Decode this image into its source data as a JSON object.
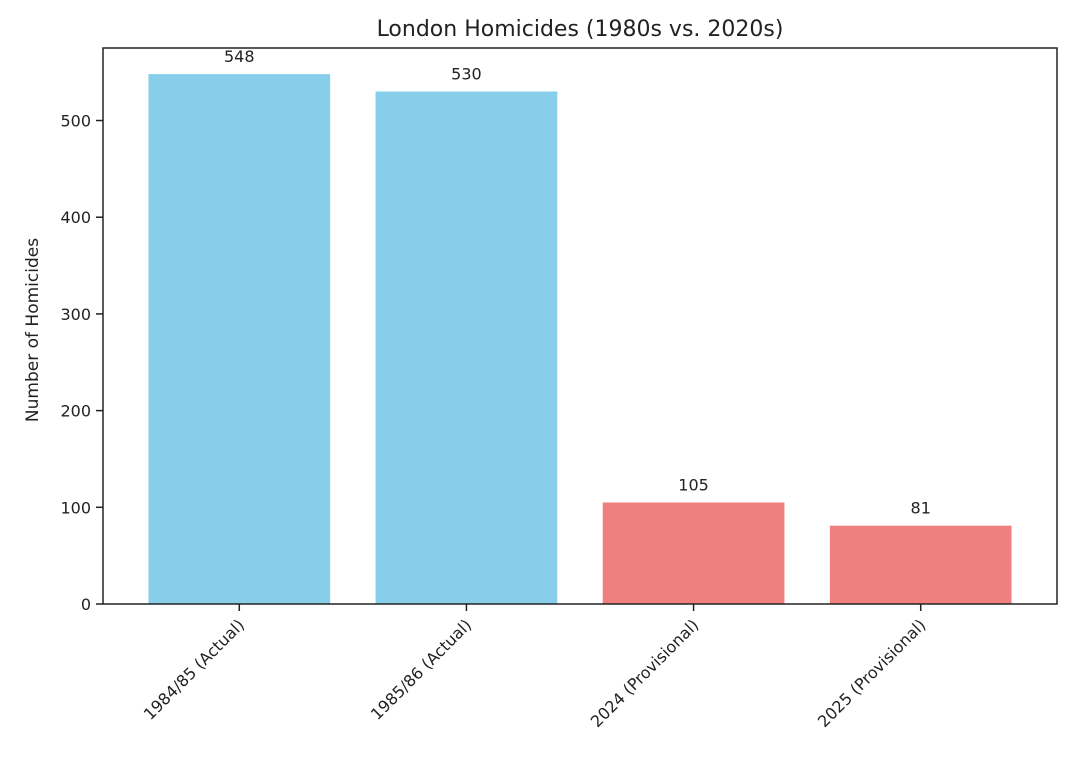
{
  "chart_data": {
    "type": "bar",
    "title": "London Homicides (1980s vs. 2020s)",
    "xlabel": "",
    "ylabel": "Number of Homicides",
    "categories": [
      "1984/85 (Actual)",
      "1985/86 (Actual)",
      "2024 (Provisional)",
      "2025 (Provisional)"
    ],
    "values": [
      548,
      530,
      105,
      81
    ],
    "data_labels": [
      "548",
      "530",
      "105",
      "81"
    ],
    "bar_colors": [
      "#87ceeb",
      "#87ceeb",
      "#f08080",
      "#f08080"
    ],
    "ylim": [
      0,
      575
    ],
    "yticks": [
      0,
      100,
      200,
      300,
      400,
      500
    ],
    "grid": false,
    "legend": "none"
  }
}
